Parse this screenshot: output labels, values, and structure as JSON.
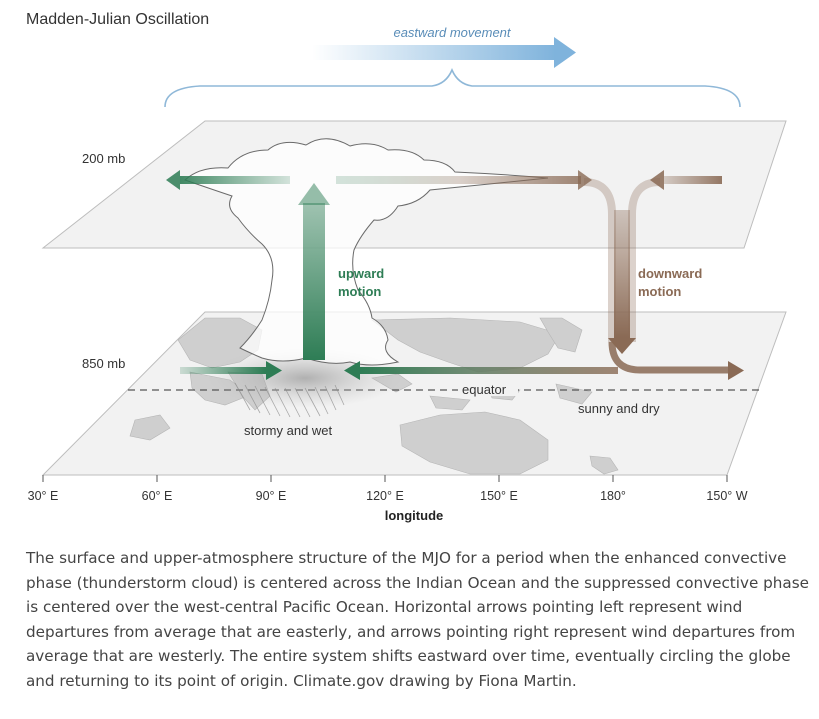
{
  "title": "Madden-Julian Oscillation",
  "movement_label": "eastward movement",
  "levels": {
    "upper": "200 mb",
    "lower": "850 mb"
  },
  "labels": {
    "upward": [
      "upward",
      "motion"
    ],
    "downward": [
      "downward",
      "motion"
    ],
    "equator": "equator",
    "stormy": "stormy and wet",
    "sunny": "sunny and dry"
  },
  "axis": {
    "ticks": [
      "30° E",
      "60° E",
      "90° E",
      "120° E",
      "150° E",
      "180°",
      "150° W"
    ],
    "label": "longitude"
  },
  "colors": {
    "upward": "#2e7d55",
    "downward": "#8a6a55",
    "movement": "#7fb3dc",
    "movement_text": "#5a8db8",
    "plane": "#f1f1f1",
    "land": "#cfcfcf"
  },
  "caption": "The surface and upper-atmosphere structure of the MJO for a period when the enhanced convective phase (thunderstorm cloud) is centered across the Indian Ocean and the suppressed convective phase is centered over the west-central Pacific Ocean. Horizontal arrows pointing left represent wind departures from average that are easterly, and arrows pointing right represent wind departures from average that are westerly. The entire system shifts eastward over time, eventually circling the globe and returning to its point of origin. Climate.gov drawing by Fiona Martin."
}
